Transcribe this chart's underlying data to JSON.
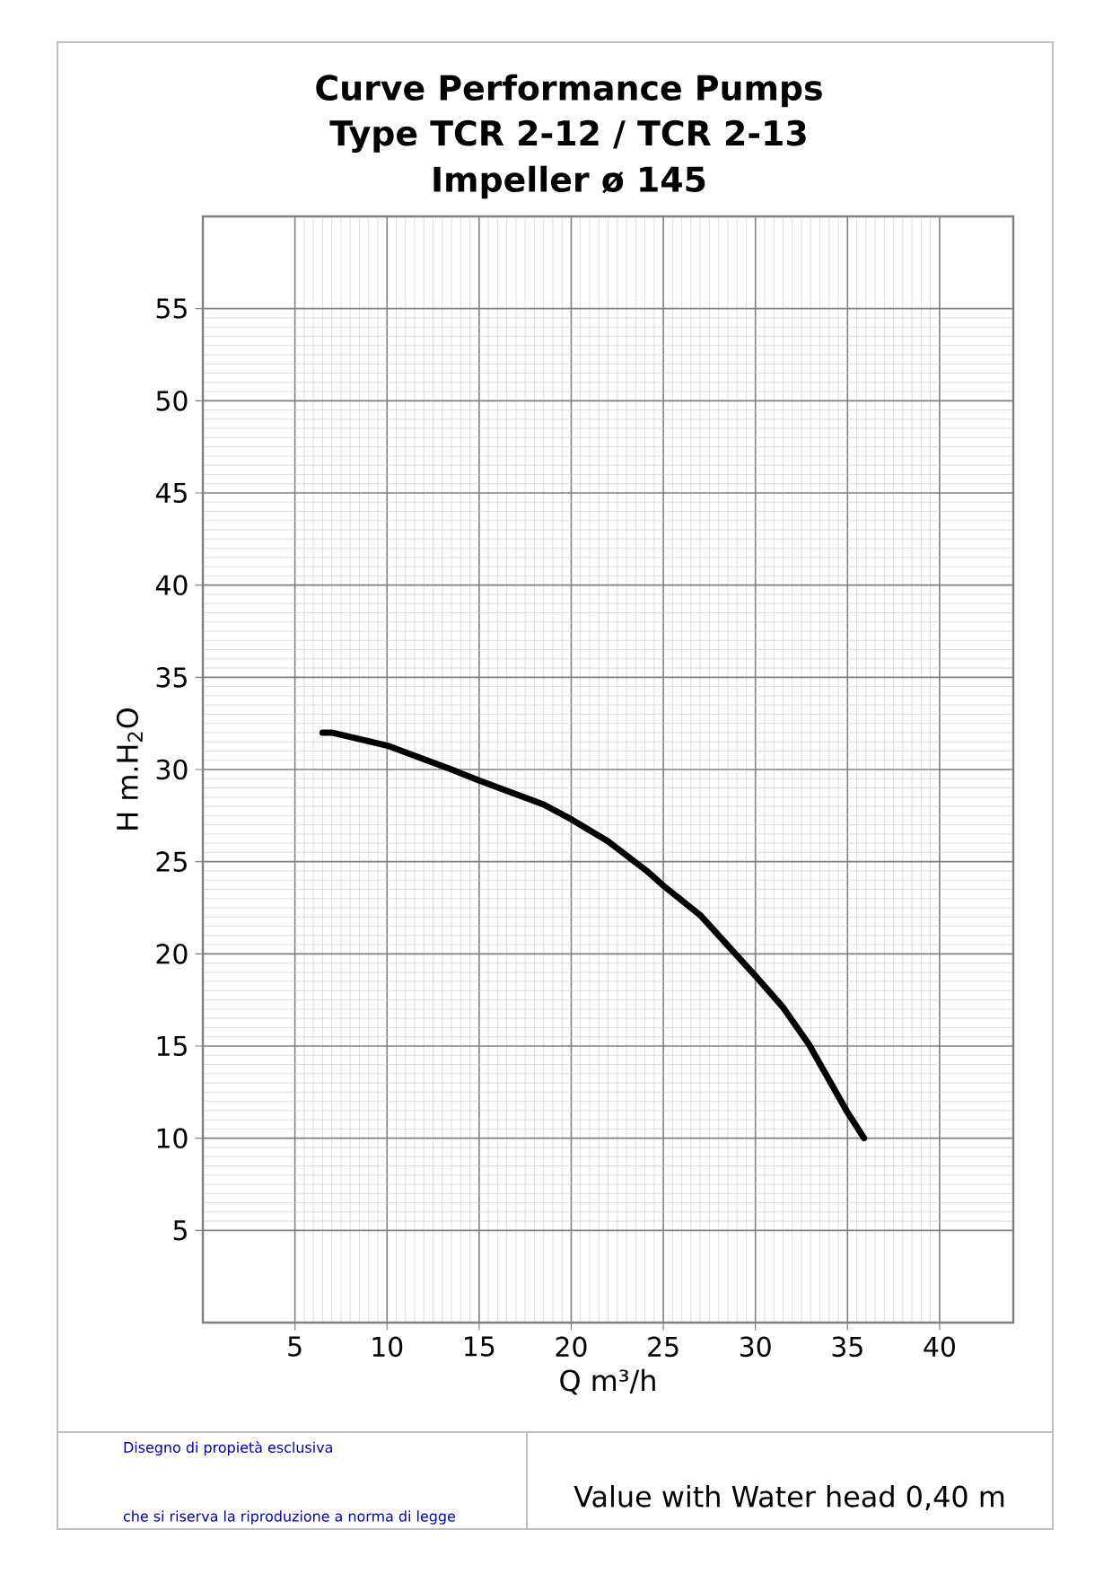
{
  "chart_data": {
    "type": "line",
    "title": "Curve Performance Pumps",
    "subtitle": "Type TCR 2-12 / TCR 2-13",
    "xlabel": "Q m³/h",
    "ylabel": "H m.H$_{2}$O",
    "x": [
      6.5,
      7,
      10,
      13.5,
      15,
      18.5,
      20,
      22,
      24.1,
      25,
      27,
      30,
      31.5,
      32.9,
      35,
      35.9
    ],
    "series": [
      {
        "color": "#000000",
        "values": [
          32,
          32,
          31.3,
          30,
          29.4,
          28.1,
          27.3,
          26.1,
          24.5,
          23.7,
          22.1,
          18.8,
          17.1,
          15.1,
          11.4,
          10
        ]
      }
    ],
    "xlim": [
      0,
      44
    ],
    "ylim": [
      0,
      60
    ],
    "xticks": [
      5,
      10,
      15,
      20,
      25,
      30,
      35,
      40
    ],
    "yticks": [
      5,
      10,
      15,
      20,
      25,
      30,
      35,
      40,
      45,
      50,
      55
    ],
    "grid": true,
    "line_style": "solid",
    "annotations": [
      "Impeller  ø 145",
      "Disegno di propietà esclusiva",
      "che si riserva la riproduzione a norma di legge",
      "Value with Water head 0,40 m"
    ]
  }
}
